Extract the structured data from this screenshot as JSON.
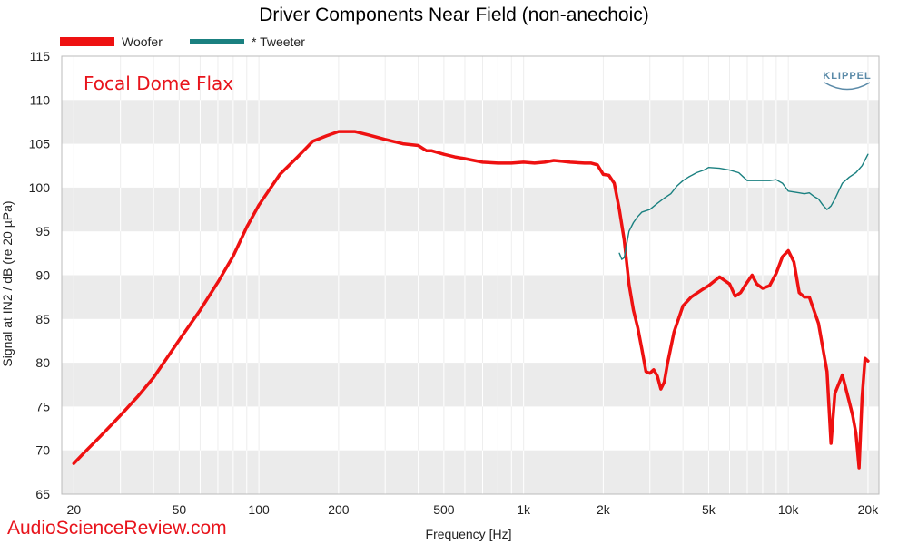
{
  "chart_data": {
    "type": "line",
    "title": "Driver Components Near Field (non-anechoic)",
    "xlabel": "Frequency [Hz]",
    "ylabel": "Signal at IN2 / dB (re 20 µPa)",
    "xscale": "log",
    "xlim": [
      18,
      22000
    ],
    "ylim": [
      65,
      115
    ],
    "yticks": [
      65,
      70,
      75,
      80,
      85,
      90,
      95,
      100,
      105,
      110,
      115
    ],
    "xticks": [
      {
        "value": 20,
        "label": "20"
      },
      {
        "value": 50,
        "label": "50"
      },
      {
        "value": 100,
        "label": "100"
      },
      {
        "value": 200,
        "label": "200"
      },
      {
        "value": 500,
        "label": "500"
      },
      {
        "value": 1000,
        "label": "1k"
      },
      {
        "value": 2000,
        "label": "2k"
      },
      {
        "value": 5000,
        "label": "5k"
      },
      {
        "value": 10000,
        "label": "10k"
      },
      {
        "value": 20000,
        "label": "20k"
      }
    ],
    "grid": true,
    "legend_position": "top-left",
    "annotation": {
      "text": "Focal Dome Flax",
      "color": "#e8141c"
    },
    "series": [
      {
        "name": "Woofer",
        "color": "#ee1111",
        "x": [
          20,
          22,
          25,
          30,
          35,
          40,
          50,
          60,
          70,
          80,
          90,
          100,
          120,
          140,
          160,
          180,
          200,
          230,
          260,
          300,
          350,
          400,
          430,
          450,
          500,
          550,
          600,
          650,
          700,
          800,
          900,
          1000,
          1100,
          1200,
          1300,
          1400,
          1500,
          1700,
          1800,
          1900,
          2000,
          2100,
          2200,
          2300,
          2400,
          2500,
          2600,
          2700,
          2800,
          2900,
          3000,
          3100,
          3200,
          3300,
          3400,
          3500,
          3700,
          4000,
          4300,
          4700,
          5000,
          5500,
          6000,
          6300,
          6600,
          7000,
          7300,
          7600,
          8000,
          8500,
          9000,
          9500,
          10000,
          10500,
          11000,
          11500,
          12000,
          13000,
          14000,
          14500,
          15000,
          16000,
          17000,
          17500,
          18000,
          18500,
          19000,
          19500,
          20000
        ],
        "y": [
          68.5,
          69.8,
          71.5,
          74,
          76.2,
          78.3,
          82.6,
          86,
          89.2,
          92.2,
          95.5,
          98,
          101.5,
          103.5,
          105.3,
          105.9,
          106.4,
          106.4,
          106,
          105.5,
          105,
          104.8,
          104.2,
          104.2,
          103.8,
          103.5,
          103.3,
          103.1,
          102.9,
          102.8,
          102.8,
          102.9,
          102.8,
          102.9,
          103.1,
          103.0,
          102.9,
          102.8,
          102.8,
          102.6,
          101.5,
          101.4,
          100.5,
          97.5,
          94,
          89,
          86,
          84,
          81.5,
          79,
          78.8,
          79.2,
          78.5,
          77.0,
          77.8,
          80,
          83.5,
          86.5,
          87.5,
          88.3,
          88.8,
          89.8,
          89.0,
          87.6,
          88.0,
          89.2,
          90.0,
          89.0,
          88.5,
          88.8,
          90.2,
          92.1,
          92.8,
          91.5,
          88,
          87.5,
          87.5,
          84.5,
          79,
          70.8,
          76.5,
          78.6,
          75.5,
          74,
          72,
          68,
          76,
          80.5,
          80.2
        ]
      },
      {
        "name": "* Tweeter",
        "color": "#1a8080",
        "x": [
          2300,
          2350,
          2400,
          2450,
          2500,
          2600,
          2700,
          2800,
          3000,
          3200,
          3400,
          3600,
          3800,
          4000,
          4200,
          4500,
          4800,
          5000,
          5500,
          6000,
          6500,
          7000,
          7500,
          8000,
          8500,
          9000,
          9500,
          10000,
          11000,
          11500,
          12000,
          12500,
          13000,
          13500,
          14000,
          14500,
          15000,
          16000,
          17000,
          18000,
          19000,
          20000
        ],
        "y": [
          92.5,
          91.8,
          92,
          93.5,
          95.0,
          96,
          96.7,
          97.2,
          97.5,
          98.2,
          98.8,
          99.3,
          100.2,
          100.8,
          101.2,
          101.7,
          102.0,
          102.3,
          102.2,
          102.0,
          101.7,
          100.8,
          100.8,
          100.8,
          100.8,
          100.9,
          100.5,
          99.6,
          99.4,
          99.3,
          99.4,
          99.0,
          98.7,
          98.0,
          97.5,
          97.9,
          98.7,
          100.5,
          101.2,
          101.7,
          102.5,
          103.8
        ]
      }
    ]
  },
  "brand_logo": "KLIPPEL",
  "watermark": "AudioScienceReview.com",
  "colors": {
    "title": "#000000",
    "band": "#ebebeb",
    "grid": "#ffffff",
    "annotation": "#e8141c",
    "watermark": "#e8141c",
    "brand": "#5a8aa8"
  }
}
